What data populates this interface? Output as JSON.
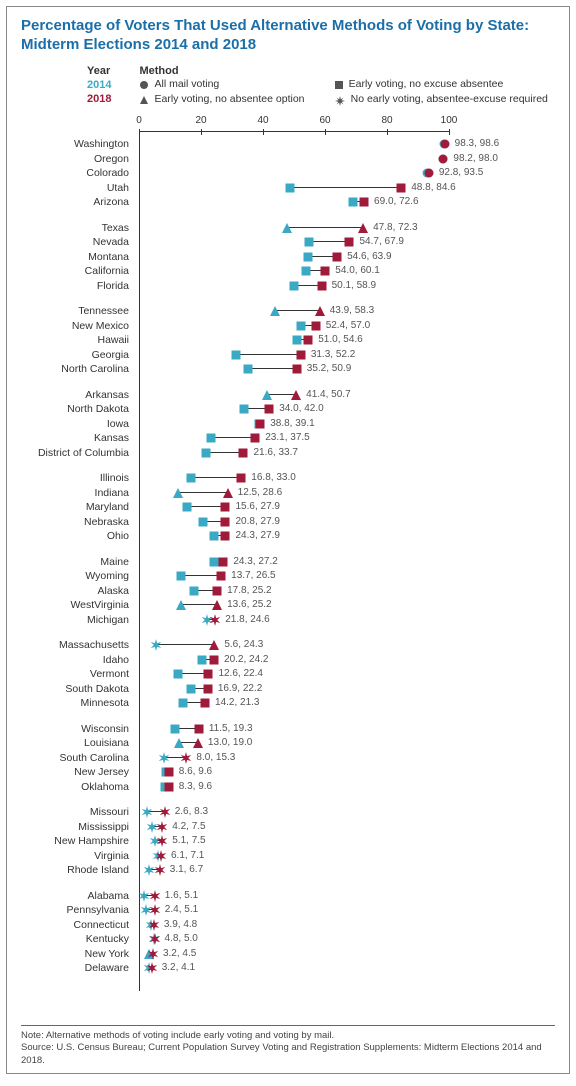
{
  "title": "Percentage of Voters That Used Alternative Methods of Voting by State: Midterm Elections 2014 and 2018",
  "legend": {
    "year_head": "Year",
    "method_head": "Method",
    "y2014": "2014",
    "y2018": "2018",
    "m_circle": "All mail voting",
    "m_square": "Early voting, no excuse absentee",
    "m_triangle": "Early voting, no absentee option",
    "m_burst": "No early voting, absentee-excuse required"
  },
  "axis": {
    "min": 0,
    "max": 100,
    "ticks": [
      0,
      20,
      40,
      60,
      80,
      100
    ]
  },
  "colors": {
    "c2014": "#3aa9c4",
    "c2018": "#a01a3a",
    "text": "#333333",
    "title": "#1b6fa8",
    "line": "#333333"
  },
  "note": "Note: Alternative methods of voting include early voting and voting by mail.\nSource: U.S. Census Bureau; Current Population Survey Voting and Registration Supplements: Midterm Elections 2014 and 2018.",
  "groups": [
    [
      {
        "state": "Washington",
        "v14": 98.3,
        "v18": 98.6,
        "shape": "circle"
      },
      {
        "state": "Oregon",
        "v14": 98.2,
        "v18": 98.0,
        "shape": "circle"
      },
      {
        "state": "Colorado",
        "v14": 92.8,
        "v18": 93.5,
        "shape": "circle"
      },
      {
        "state": "Utah",
        "v14": 48.8,
        "v18": 84.6,
        "shape": "square"
      },
      {
        "state": "Arizona",
        "v14": 69.0,
        "v18": 72.6,
        "shape": "square"
      }
    ],
    [
      {
        "state": "Texas",
        "v14": 47.8,
        "v18": 72.3,
        "shape": "triangle"
      },
      {
        "state": "Nevada",
        "v14": 54.7,
        "v18": 67.9,
        "shape": "square"
      },
      {
        "state": "Montana",
        "v14": 54.6,
        "v18": 63.9,
        "shape": "square"
      },
      {
        "state": "California",
        "v14": 54.0,
        "v18": 60.1,
        "shape": "square"
      },
      {
        "state": "Florida",
        "v14": 50.1,
        "v18": 58.9,
        "shape": "square"
      }
    ],
    [
      {
        "state": "Tennessee",
        "v14": 43.9,
        "v18": 58.3,
        "shape": "triangle"
      },
      {
        "state": "New Mexico",
        "v14": 52.4,
        "v18": 57.0,
        "shape": "square"
      },
      {
        "state": "Hawaii",
        "v14": 51.0,
        "v18": 54.6,
        "shape": "square"
      },
      {
        "state": "Georgia",
        "v14": 31.3,
        "v18": 52.2,
        "shape": "square"
      },
      {
        "state": "North Carolina",
        "v14": 35.2,
        "v18": 50.9,
        "shape": "square"
      }
    ],
    [
      {
        "state": "Arkansas",
        "v14": 41.4,
        "v18": 50.7,
        "shape": "triangle"
      },
      {
        "state": "North Dakota",
        "v14": 34.0,
        "v18": 42.0,
        "shape": "square"
      },
      {
        "state": "Iowa",
        "v14": 38.8,
        "v18": 39.1,
        "shape": "square"
      },
      {
        "state": "Kansas",
        "v14": 23.1,
        "v18": 37.5,
        "shape": "square"
      },
      {
        "state": "District of Columbia",
        "v14": 21.6,
        "v18": 33.7,
        "shape": "square"
      }
    ],
    [
      {
        "state": "Illinois",
        "v14": 16.8,
        "v18": 33.0,
        "shape": "square"
      },
      {
        "state": "Indiana",
        "v14": 12.5,
        "v18": 28.6,
        "shape": "triangle"
      },
      {
        "state": "Maryland",
        "v14": 15.6,
        "v18": 27.9,
        "shape": "square"
      },
      {
        "state": "Nebraska",
        "v14": 20.8,
        "v18": 27.9,
        "shape": "square"
      },
      {
        "state": "Ohio",
        "v14": 24.3,
        "v18": 27.9,
        "shape": "square"
      }
    ],
    [
      {
        "state": "Maine",
        "v14": 24.3,
        "v18": 27.2,
        "shape": "square"
      },
      {
        "state": "Wyoming",
        "v14": 13.7,
        "v18": 26.5,
        "shape": "square"
      },
      {
        "state": "Alaska",
        "v14": 17.8,
        "v18": 25.2,
        "shape": "square"
      },
      {
        "state": "WestVirginia",
        "v14": 13.6,
        "v18": 25.2,
        "shape": "triangle"
      },
      {
        "state": "Michigan",
        "v14": 21.8,
        "v18": 24.6,
        "shape": "burst"
      }
    ],
    [
      {
        "state": "Massachusetts",
        "v14": 5.6,
        "v18": 24.3,
        "shape14": "burst",
        "shape": "triangle"
      },
      {
        "state": "Idaho",
        "v14": 20.2,
        "v18": 24.2,
        "shape": "square"
      },
      {
        "state": "Vermont",
        "v14": 12.6,
        "v18": 22.4,
        "shape": "square"
      },
      {
        "state": "South Dakota",
        "v14": 16.9,
        "v18": 22.2,
        "shape": "square"
      },
      {
        "state": "Minnesota",
        "v14": 14.2,
        "v18": 21.3,
        "shape": "square"
      }
    ],
    [
      {
        "state": "Wisconsin",
        "v14": 11.5,
        "v18": 19.3,
        "shape": "square"
      },
      {
        "state": "Louisiana",
        "v14": 13.0,
        "v18": 19.0,
        "shape": "triangle"
      },
      {
        "state": "South Carolina",
        "v14": 8.0,
        "v18": 15.3,
        "shape": "burst"
      },
      {
        "state": "New Jersey",
        "v14": 8.6,
        "v18": 9.6,
        "shape": "square"
      },
      {
        "state": "Oklahoma",
        "v14": 8.3,
        "v18": 9.6,
        "shape": "square"
      }
    ],
    [
      {
        "state": "Missouri",
        "v14": 2.6,
        "v18": 8.3,
        "shape": "burst"
      },
      {
        "state": "Mississippi",
        "v14": 4.2,
        "v18": 7.5,
        "shape": "burst"
      },
      {
        "state": "New Hampshire",
        "v14": 5.1,
        "v18": 7.5,
        "shape": "burst"
      },
      {
        "state": "Virginia",
        "v14": 6.1,
        "v18": 7.1,
        "shape": "burst"
      },
      {
        "state": "Rhode Island",
        "v14": 3.1,
        "v18": 6.7,
        "shape": "burst"
      }
    ],
    [
      {
        "state": "Alabama",
        "v14": 1.6,
        "v18": 5.1,
        "shape": "burst"
      },
      {
        "state": "Pennsylvania",
        "v14": 2.4,
        "v18": 5.1,
        "shape": "burst"
      },
      {
        "state": "Connecticut",
        "v14": 3.9,
        "v18": 4.8,
        "shape": "burst"
      },
      {
        "state": "Kentucky",
        "v14": 4.8,
        "v18": 5.0,
        "shape": "burst"
      },
      {
        "state": "New York",
        "v14": 3.2,
        "v18": 4.5,
        "shape14": "triangle",
        "shape": "burst"
      },
      {
        "state": "Delaware",
        "v14": 3.2,
        "v18": 4.1,
        "shape": "burst"
      }
    ]
  ]
}
